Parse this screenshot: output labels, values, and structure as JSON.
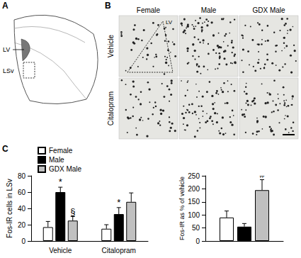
{
  "figure": {
    "panels": {
      "A": {
        "label": "A",
        "ventricle_label": "LV",
        "region_label": "LSv"
      },
      "B": {
        "label": "B",
        "columns": [
          "Female",
          "Male",
          "GDX Male"
        ],
        "rows": [
          "Vehicle",
          "Citalopram"
        ],
        "image_label": "LV"
      },
      "C": {
        "label": "C"
      }
    }
  },
  "chart_data": [
    {
      "type": "bar",
      "y_label": "Fos-IR cells in LSv",
      "categories": [
        "Vehicle",
        "Citalopram"
      ],
      "series": [
        {
          "name": "Female",
          "color": "#ffffff",
          "values": [
            17,
            15
          ],
          "errors": [
            7,
            5
          ]
        },
        {
          "name": "Male",
          "color": "#000000",
          "values": [
            60,
            33
          ],
          "errors": [
            6,
            8
          ]
        },
        {
          "name": "GDX Male",
          "color": "#c0c0c0",
          "values": [
            25,
            48
          ],
          "errors": [
            5,
            11
          ]
        }
      ],
      "ylim": [
        0,
        80
      ],
      "yticks": [
        0,
        20,
        40,
        60,
        80
      ],
      "grid": false,
      "legend": "upper left",
      "annotations": [
        {
          "series": "Male",
          "index": 0,
          "text": "*"
        },
        {
          "series": "GDX Male",
          "index": 0,
          "text": "§"
        },
        {
          "series": "Male",
          "index": 1,
          "text": "*"
        }
      ]
    },
    {
      "type": "bar",
      "y_label": "Fos-IR as % of vehicle",
      "categories": [
        null
      ],
      "series": [
        {
          "name": "Female",
          "color": "#ffffff",
          "values": [
            90
          ],
          "errors": [
            25
          ]
        },
        {
          "name": "Male",
          "color": "#000000",
          "values": [
            55
          ],
          "errors": [
            12
          ]
        },
        {
          "name": "GDX Male",
          "color": "#c0c0c0",
          "values": [
            195
          ],
          "errors": [
            40
          ]
        }
      ],
      "ylim": [
        0,
        250
      ],
      "yticks": [
        0,
        50,
        100,
        150,
        200,
        250
      ],
      "grid": false,
      "annotations": [
        {
          "series": "GDX Male",
          "index": 0,
          "text": "#"
        }
      ]
    }
  ]
}
